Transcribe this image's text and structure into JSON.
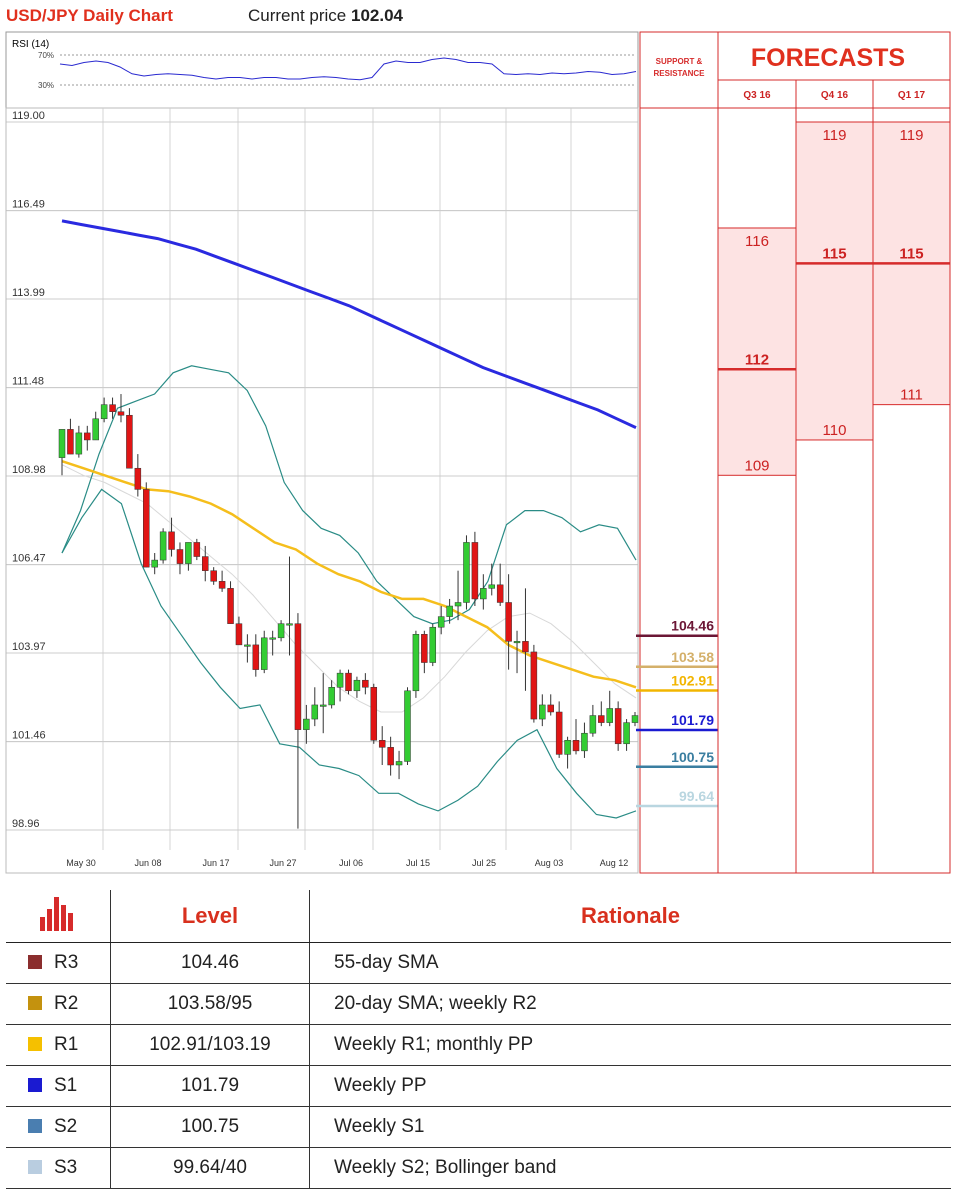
{
  "header": {
    "title": "USD/JPY Daily Chart",
    "price_label": "Current price",
    "price_value": "102.04"
  },
  "rsi": {
    "label": "RSI (14)",
    "upper": "70%",
    "lower": "30%",
    "values": [
      58,
      56,
      60,
      62,
      60,
      54,
      45,
      42,
      44,
      45,
      44,
      43,
      40,
      38,
      40,
      40,
      38,
      40,
      40,
      38,
      38,
      40,
      41,
      40,
      38,
      37,
      40,
      58,
      62,
      60,
      60,
      64,
      66,
      64,
      60,
      60,
      58,
      45,
      44,
      45,
      44,
      46,
      45,
      46,
      48,
      47,
      44,
      45,
      48
    ]
  },
  "chart_data": {
    "type": "candlestick",
    "title": "USD/JPY Daily Chart",
    "ylim": [
      98.96,
      119.0
    ],
    "y_ticks": [
      "119.00",
      "116.49",
      "113.99",
      "111.48",
      "108.98",
      "106.47",
      "103.97",
      "101.46",
      "98.96"
    ],
    "x_ticks": [
      "May 30",
      "Jun 08",
      "Jun 17",
      "Jun 27",
      "Jul 06",
      "Jul 15",
      "Jul 25",
      "Aug 03",
      "Aug 12"
    ],
    "candles": [
      [
        109.5,
        110.3,
        109.0,
        110.3
      ],
      [
        110.3,
        110.6,
        109.6,
        109.6
      ],
      [
        109.6,
        110.4,
        109.5,
        110.2
      ],
      [
        110.2,
        110.4,
        109.7,
        110.0
      ],
      [
        110.0,
        110.8,
        110.0,
        110.6
      ],
      [
        110.6,
        111.2,
        110.5,
        111.0
      ],
      [
        111.0,
        111.2,
        110.6,
        110.8
      ],
      [
        110.8,
        111.3,
        110.5,
        110.7
      ],
      [
        110.7,
        110.9,
        109.2,
        109.2
      ],
      [
        109.2,
        109.6,
        108.4,
        108.6
      ],
      [
        108.6,
        108.8,
        106.4,
        106.4
      ],
      [
        106.4,
        106.8,
        106.2,
        106.6
      ],
      [
        106.6,
        107.5,
        106.5,
        107.4
      ],
      [
        107.4,
        107.8,
        106.7,
        106.9
      ],
      [
        106.9,
        107.1,
        106.2,
        106.5
      ],
      [
        106.5,
        107.1,
        106.3,
        107.1
      ],
      [
        107.1,
        107.2,
        106.6,
        106.7
      ],
      [
        106.7,
        107.0,
        106.0,
        106.3
      ],
      [
        106.3,
        106.4,
        105.9,
        106.0
      ],
      [
        106.0,
        106.3,
        105.7,
        105.8
      ],
      [
        105.8,
        106.0,
        104.8,
        104.8
      ],
      [
        104.8,
        105.0,
        104.2,
        104.2
      ],
      [
        104.2,
        104.5,
        103.7,
        104.2
      ],
      [
        104.2,
        104.5,
        103.3,
        103.5
      ],
      [
        103.5,
        104.6,
        103.4,
        104.4
      ],
      [
        104.4,
        104.6,
        103.9,
        104.4
      ],
      [
        104.4,
        104.9,
        104.3,
        104.8
      ],
      [
        104.8,
        106.7,
        103.9,
        104.8
      ],
      [
        104.8,
        105.1,
        99.0,
        101.8
      ],
      [
        101.8,
        102.5,
        101.4,
        102.1
      ],
      [
        102.1,
        103.0,
        101.9,
        102.5
      ],
      [
        102.5,
        103.4,
        101.7,
        102.5
      ],
      [
        102.5,
        103.2,
        102.4,
        103.0
      ],
      [
        103.0,
        103.5,
        102.6,
        103.4
      ],
      [
        103.4,
        103.5,
        102.8,
        102.9
      ],
      [
        102.9,
        103.3,
        102.7,
        103.2
      ],
      [
        103.2,
        103.4,
        102.8,
        103.0
      ],
      [
        103.0,
        103.1,
        101.4,
        101.5
      ],
      [
        101.5,
        101.9,
        100.8,
        101.3
      ],
      [
        101.3,
        101.6,
        100.5,
        100.8
      ],
      [
        100.8,
        101.2,
        100.4,
        100.9
      ],
      [
        100.9,
        103.0,
        100.8,
        102.9
      ],
      [
        102.9,
        104.6,
        102.7,
        104.5
      ],
      [
        104.5,
        104.6,
        103.4,
        103.7
      ],
      [
        103.7,
        104.8,
        103.6,
        104.7
      ],
      [
        104.7,
        105.3,
        104.5,
        105.0
      ],
      [
        105.0,
        105.5,
        104.8,
        105.3
      ],
      [
        105.3,
        106.3,
        104.9,
        105.4
      ],
      [
        105.4,
        107.3,
        105.2,
        107.1
      ],
      [
        107.1,
        107.4,
        105.3,
        105.5
      ],
      [
        105.5,
        106.2,
        105.2,
        105.8
      ],
      [
        105.8,
        106.5,
        105.6,
        105.9
      ],
      [
        105.9,
        106.5,
        105.3,
        105.4
      ],
      [
        105.4,
        106.2,
        103.5,
        104.3
      ],
      [
        104.3,
        104.6,
        103.4,
        104.3
      ],
      [
        104.3,
        105.8,
        102.9,
        104.0
      ],
      [
        104.0,
        104.2,
        102.0,
        102.1
      ],
      [
        102.1,
        102.8,
        101.9,
        102.5
      ],
      [
        102.5,
        102.8,
        102.2,
        102.3
      ],
      [
        102.3,
        102.6,
        101.0,
        101.1
      ],
      [
        101.1,
        101.6,
        100.7,
        101.5
      ],
      [
        101.5,
        102.1,
        101.1,
        101.2
      ],
      [
        101.2,
        102.0,
        101.0,
        101.7
      ],
      [
        101.7,
        102.5,
        101.6,
        102.2
      ],
      [
        102.2,
        102.6,
        101.9,
        102.0
      ],
      [
        102.0,
        102.9,
        101.9,
        102.4
      ],
      [
        102.4,
        102.6,
        101.2,
        101.4
      ],
      [
        101.4,
        102.1,
        101.2,
        102.0
      ],
      [
        102.0,
        102.3,
        101.9,
        102.2
      ]
    ],
    "sma_200": [
      116.2,
      116.1,
      116.0,
      115.9,
      115.8,
      115.7,
      115.55,
      115.4,
      115.2,
      115.0,
      114.8,
      114.6,
      114.4,
      114.2,
      114.0,
      113.8,
      113.55,
      113.3,
      113.05,
      112.8,
      112.55,
      112.3,
      112.05,
      111.85,
      111.65,
      111.45,
      111.25,
      111.05,
      110.85,
      110.6,
      110.35
    ],
    "sma_55": [
      109.4,
      109.2,
      109.0,
      108.8,
      108.6,
      108.55,
      108.4,
      108.2,
      107.9,
      107.5,
      107.1,
      106.9,
      106.5,
      106.2,
      106.0,
      105.7,
      105.5,
      105.5,
      105.3,
      105.0,
      104.7,
      104.2,
      103.9,
      103.7,
      103.5,
      103.3,
      103.2,
      103.0
    ],
    "bb_upper": [
      106.8,
      108.0,
      109.6,
      110.9,
      111.1,
      111.3,
      111.9,
      112.1,
      112.0,
      111.9,
      111.4,
      110.4,
      108.8,
      108.0,
      107.5,
      107.3,
      106.8,
      106.0,
      105.5,
      105.0,
      104.8,
      104.9,
      105.2,
      106.0,
      107.6,
      108.0,
      108.0,
      107.8,
      107.4,
      107.6,
      107.5,
      106.6
    ],
    "bb_lower": [
      106.8,
      107.8,
      108.6,
      108.2,
      106.5,
      105.3,
      104.5,
      103.7,
      103.0,
      102.4,
      102.5,
      101.4,
      101.3,
      100.8,
      100.7,
      100.5,
      100.0,
      100.0,
      99.7,
      99.5,
      99.8,
      100.2,
      100.9,
      101.5,
      101.8,
      100.7,
      100.0,
      99.4,
      99.3,
      99.5
    ],
    "sma_20": [
      109.3,
      109.0,
      108.8,
      108.5,
      108.2,
      107.7,
      107.2,
      106.7,
      106.2,
      105.6,
      104.9,
      104.2,
      103.6,
      103.0,
      102.6,
      102.3,
      102.3,
      102.7,
      103.3,
      104.0,
      104.6,
      105.0,
      105.1,
      104.8,
      104.3,
      103.7,
      103.1,
      102.7
    ]
  },
  "sr": {
    "header": "SUPPORT & RESISTANCE",
    "levels": [
      {
        "value": "104.46",
        "color": "#6b1635",
        "y": 104.46
      },
      {
        "value": "103.58",
        "color": "#d4b06a",
        "y": 103.58
      },
      {
        "value": "102.91",
        "color": "#f2b500",
        "y": 102.91
      },
      {
        "value": "101.79",
        "color": "#1a1ad1",
        "y": 101.79
      },
      {
        "value": "100.75",
        "color": "#3a7ea0",
        "y": 100.75
      },
      {
        "value": "99.64",
        "color": "#b9d6e0",
        "y": 99.64
      }
    ]
  },
  "forecasts": {
    "title": "FORECASTS",
    "columns": [
      {
        "label": "Q3 16",
        "high": "116",
        "mid": "112",
        "low": "109",
        "highv": 116,
        "midv": 112,
        "lowv": 109
      },
      {
        "label": "Q4 16",
        "high": "119",
        "mid": "115",
        "low": "110",
        "highv": 119,
        "midv": 115,
        "lowv": 110
      },
      {
        "label": "Q1 17",
        "high": "119",
        "mid": "115",
        "low": "111",
        "highv": 119,
        "midv": 115,
        "lowv": 111
      }
    ]
  },
  "levels_table": {
    "header_level": "Level",
    "header_rationale": "Rationale",
    "rows": [
      {
        "tier": "R3",
        "color": "#8b2e2e",
        "level": "104.46",
        "rationale": "55-day SMA"
      },
      {
        "tier": "R2",
        "color": "#c4920e",
        "level": "103.58/95",
        "rationale": "20-day SMA; weekly R2"
      },
      {
        "tier": "R1",
        "color": "#f5c000",
        "level": "102.91/103.19",
        "rationale": "Weekly R1; monthly PP"
      },
      {
        "tier": "S1",
        "color": "#1a1ad1",
        "level": "101.79",
        "rationale": "Weekly PP"
      },
      {
        "tier": "S2",
        "color": "#4a7eb0",
        "level": "100.75",
        "rationale": "Weekly S1"
      },
      {
        "tier": "S3",
        "color": "#b9cde0",
        "level": "99.64/40",
        "rationale": "Weekly S2; Bollinger band"
      }
    ]
  },
  "colors": {
    "up": "#33cc33",
    "down": "#e01515",
    "sma200": "#2a2ae0",
    "sma55": "#f5be1c",
    "bb": "#2a8c86",
    "sma20": "#d8d8d8",
    "accent": "#e0301e"
  }
}
